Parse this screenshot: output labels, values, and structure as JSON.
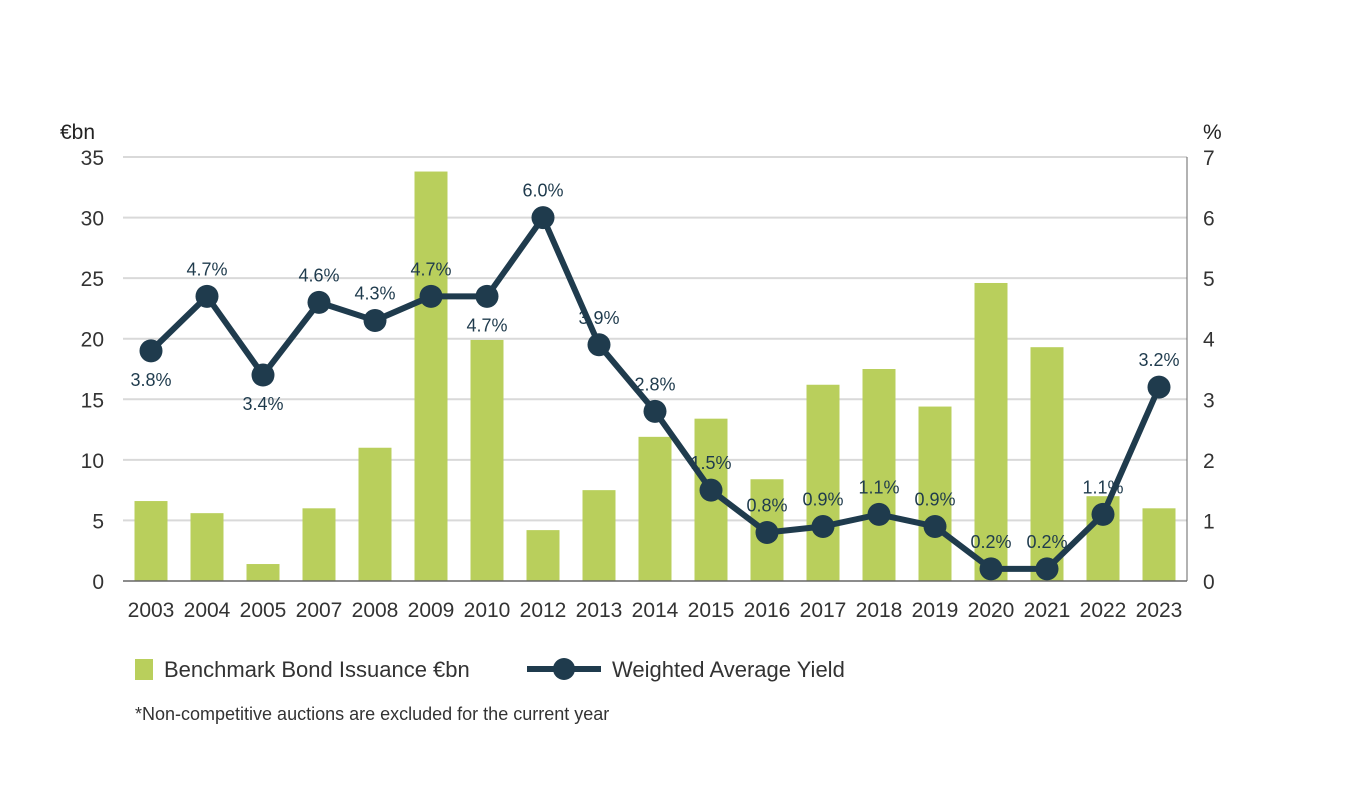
{
  "chart_data": {
    "type": "bar",
    "title": "",
    "categories": [
      "2003",
      "2004",
      "2005",
      "2007",
      "2008",
      "2009",
      "2010",
      "2012",
      "2013",
      "2014",
      "2015",
      "2016",
      "2017",
      "2018",
      "2019",
      "2020",
      "2021",
      "2022",
      "2023"
    ],
    "series": [
      {
        "name": "Benchmark Bond Issuance €bn",
        "type": "bar",
        "axis": "left",
        "color": "#b9cf5c",
        "values": [
          6.6,
          5.6,
          1.4,
          6.0,
          11.0,
          33.8,
          19.9,
          4.2,
          7.5,
          11.9,
          13.4,
          8.4,
          16.2,
          17.5,
          14.4,
          24.6,
          19.3,
          7.0,
          6.0
        ]
      },
      {
        "name": "Weighted Average Yield",
        "type": "line",
        "axis": "right",
        "color": "#1f3b4d",
        "values": [
          3.8,
          4.7,
          3.4,
          4.6,
          4.3,
          4.7,
          4.7,
          6.0,
          3.9,
          2.8,
          1.5,
          0.8,
          0.9,
          1.1,
          0.9,
          0.2,
          0.2,
          1.1,
          3.2
        ],
        "labels": [
          "3.8%",
          "4.7%",
          "3.4%",
          "4.6%",
          "4.3%",
          "4.7%",
          "4.7%",
          "6.0%",
          "3.9%",
          "2.8%",
          "1.5%",
          "0.8%",
          "0.9%",
          "1.1%",
          "0.9%",
          "0.2%",
          "0.2%",
          "1.1%",
          "3.2%"
        ],
        "label_positions": [
          "below",
          "above",
          "below",
          "above",
          "above",
          "above",
          "below",
          "above",
          "above",
          "above",
          "above",
          "above",
          "above",
          "above",
          "above",
          "above",
          "above",
          "above",
          "above"
        ]
      }
    ],
    "ylabel_left": "€bn",
    "ylabel_right": "%",
    "ylim_left": [
      0,
      35
    ],
    "ylim_right": [
      0,
      7
    ],
    "yticks_left": [
      "0",
      "5",
      "10",
      "15",
      "20",
      "25",
      "30",
      "35"
    ],
    "yticks_right": [
      "0",
      "1",
      "2",
      "3",
      "4",
      "5",
      "6",
      "7"
    ],
    "grid": true,
    "legend_position": "bottom-left"
  },
  "footnote": "*Non-competitive auctions are excluded for the current year"
}
